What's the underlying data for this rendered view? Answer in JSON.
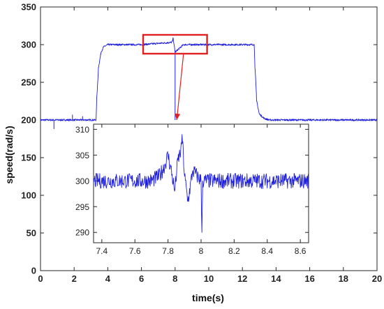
{
  "chart_data": [
    {
      "id": "main",
      "type": "line",
      "title": "",
      "xlabel": "time(s)",
      "ylabel": "speed(rad/s)",
      "xlim": [
        0,
        20
      ],
      "ylim": [
        0,
        350
      ],
      "xticks": [
        0,
        2,
        4,
        6,
        8,
        10,
        12,
        14,
        16,
        18,
        20
      ],
      "yticks": [
        0,
        50,
        100,
        150,
        200,
        250,
        300,
        350
      ],
      "grid": false,
      "series": [
        {
          "color": "#1f1fe0",
          "x": [
            0,
            3.3,
            3.35,
            3.45,
            3.6,
            3.75,
            4.0,
            4.5,
            6,
            7.8,
            7.85,
            7.88,
            8.0,
            8.5,
            10,
            11,
            12,
            12.7,
            12.75,
            12.85,
            13.0,
            13.3,
            13.6,
            14,
            16,
            18,
            20
          ],
          "y": [
            200,
            200,
            230,
            270,
            290,
            297,
            300,
            300,
            300,
            303,
            305,
            309,
            290,
            300,
            300,
            300,
            300,
            300,
            270,
            225,
            208,
            202,
            200,
            200,
            200,
            200,
            200
          ],
          "noise": 1.2
        }
      ],
      "highlight_box": {
        "x": [
          6.1,
          9.9
        ],
        "y": [
          288,
          313
        ],
        "color": "#e02020"
      },
      "arrow": {
        "from": [
          8.5,
          288
        ],
        "to": [
          8.1,
          200
        ],
        "color": "#e02020"
      }
    },
    {
      "id": "inset",
      "type": "line",
      "title": "",
      "xlabel": "",
      "ylabel": "",
      "xlim": [
        7.35,
        8.65
      ],
      "ylim": [
        288,
        311
      ],
      "xticks": [
        7.4,
        7.6,
        7.8,
        8,
        8.2,
        8.4,
        8.6
      ],
      "xtick_labels": [
        "7.4",
        "7.6",
        "7.8",
        "8",
        "8.2",
        "8.4",
        "8.6"
      ],
      "yticks": [
        290,
        295,
        300,
        305,
        310
      ],
      "grid": false,
      "series": [
        {
          "color": "#1f1fe0",
          "x": [
            7.35,
            7.5,
            7.6,
            7.7,
            7.75,
            7.78,
            7.8,
            7.82,
            7.84,
            7.86,
            7.88,
            7.885,
            7.9,
            7.92,
            7.95,
            8.0,
            8.005,
            8.01,
            8.05,
            8.2,
            8.4,
            8.65
          ],
          "y": [
            300,
            300,
            300,
            300,
            301,
            303,
            305,
            302,
            298,
            304,
            306,
            309,
            301,
            296,
            302,
            300,
            290,
            300,
            300,
            300,
            300,
            300
          ],
          "noise": 1.5
        }
      ]
    }
  ]
}
